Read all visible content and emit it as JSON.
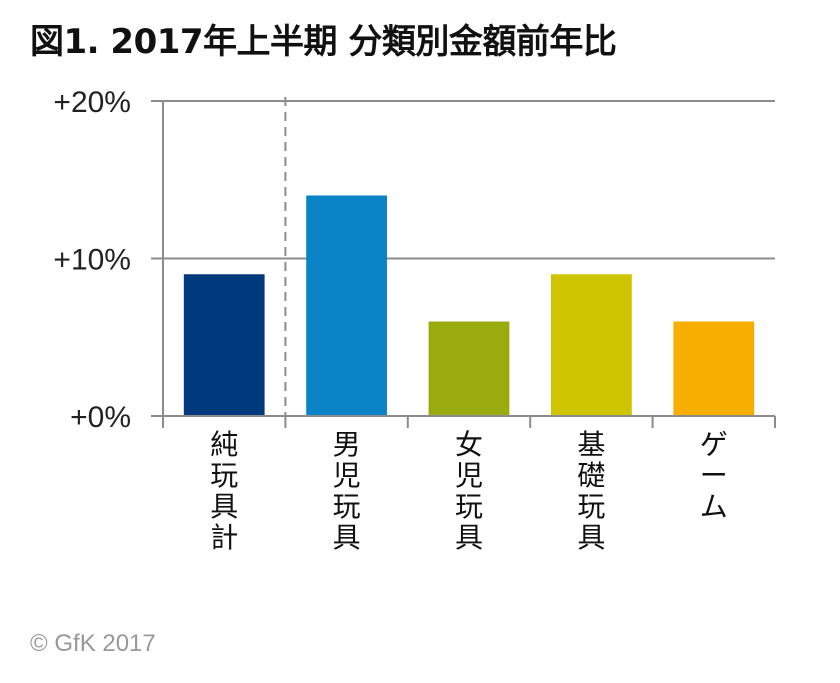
{
  "title": "図1. 2017年上半期 分類別金額前年比",
  "footer": "© GfK 2017",
  "chart_data": {
    "type": "bar",
    "title": "図1. 2017年上半期 分類別金額前年比",
    "categories": [
      "純玩具計",
      "男児玩具",
      "女児玩具",
      "基礎玩具",
      "ゲーム"
    ],
    "values": [
      9,
      14,
      6,
      9,
      6
    ],
    "colors": [
      "#003a7d",
      "#0a84c6",
      "#9aab10",
      "#cfc400",
      "#f7ae00"
    ],
    "ylim": [
      0,
      20
    ],
    "yticks": [
      0,
      10,
      20
    ],
    "ytick_labels": [
      "+0%",
      "+10%",
      "+20%"
    ],
    "grid": true,
    "divider_after_index": 0
  }
}
